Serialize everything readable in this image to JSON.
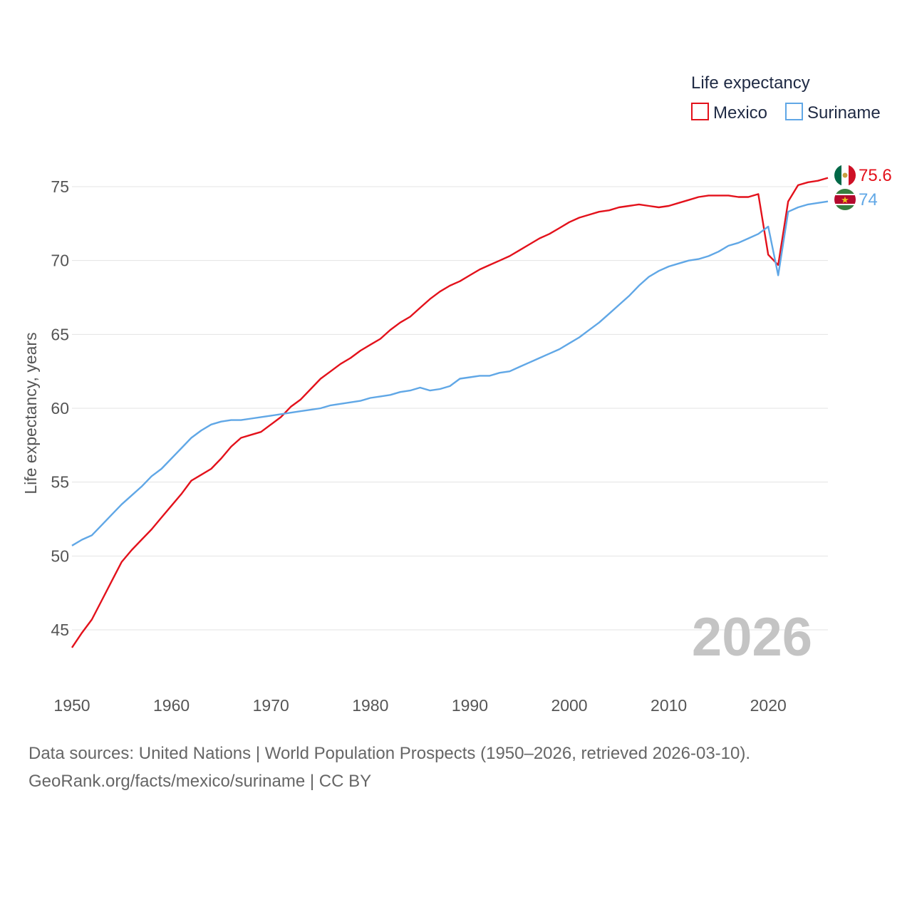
{
  "chart_data": {
    "type": "line",
    "title": "",
    "xlabel": "",
    "ylabel": "Life expectancy, years",
    "xlim": [
      1950,
      2026
    ],
    "ylim": [
      42.5,
      77
    ],
    "x_ticks": [
      1950,
      1960,
      1970,
      1980,
      1990,
      2000,
      2010,
      2020
    ],
    "y_ticks": [
      45,
      50,
      55,
      60,
      65,
      70,
      75
    ],
    "legend": {
      "title": "Life expectancy",
      "position": "top-right"
    },
    "current_year": "2026",
    "series": [
      {
        "name": "Mexico",
        "color": "#e3111b",
        "end_label": "75.6",
        "flag": "mexico-flag-icon",
        "points": [
          [
            1950,
            43.8
          ],
          [
            1951,
            44.8
          ],
          [
            1952,
            45.7
          ],
          [
            1953,
            47.0
          ],
          [
            1954,
            48.3
          ],
          [
            1955,
            49.6
          ],
          [
            1956,
            50.4
          ],
          [
            1957,
            51.1
          ],
          [
            1958,
            51.8
          ],
          [
            1959,
            52.6
          ],
          [
            1960,
            53.4
          ],
          [
            1961,
            54.2
          ],
          [
            1962,
            55.1
          ],
          [
            1963,
            55.5
          ],
          [
            1964,
            55.9
          ],
          [
            1965,
            56.6
          ],
          [
            1966,
            57.4
          ],
          [
            1967,
            58.0
          ],
          [
            1968,
            58.2
          ],
          [
            1969,
            58.4
          ],
          [
            1970,
            58.9
          ],
          [
            1971,
            59.4
          ],
          [
            1972,
            60.1
          ],
          [
            1973,
            60.6
          ],
          [
            1974,
            61.3
          ],
          [
            1975,
            62.0
          ],
          [
            1976,
            62.5
          ],
          [
            1977,
            63.0
          ],
          [
            1978,
            63.4
          ],
          [
            1979,
            63.9
          ],
          [
            1980,
            64.3
          ],
          [
            1981,
            64.7
          ],
          [
            1982,
            65.3
          ],
          [
            1983,
            65.8
          ],
          [
            1984,
            66.2
          ],
          [
            1985,
            66.8
          ],
          [
            1986,
            67.4
          ],
          [
            1987,
            67.9
          ],
          [
            1988,
            68.3
          ],
          [
            1989,
            68.6
          ],
          [
            1990,
            69.0
          ],
          [
            1991,
            69.4
          ],
          [
            1992,
            69.7
          ],
          [
            1993,
            70.0
          ],
          [
            1994,
            70.3
          ],
          [
            1995,
            70.7
          ],
          [
            1996,
            71.1
          ],
          [
            1997,
            71.5
          ],
          [
            1998,
            71.8
          ],
          [
            1999,
            72.2
          ],
          [
            2000,
            72.6
          ],
          [
            2001,
            72.9
          ],
          [
            2002,
            73.1
          ],
          [
            2003,
            73.3
          ],
          [
            2004,
            73.4
          ],
          [
            2005,
            73.6
          ],
          [
            2006,
            73.7
          ],
          [
            2007,
            73.8
          ],
          [
            2008,
            73.7
          ],
          [
            2009,
            73.6
          ],
          [
            2010,
            73.7
          ],
          [
            2011,
            73.9
          ],
          [
            2012,
            74.1
          ],
          [
            2013,
            74.3
          ],
          [
            2014,
            74.4
          ],
          [
            2015,
            74.4
          ],
          [
            2016,
            74.4
          ],
          [
            2017,
            74.3
          ],
          [
            2018,
            74.3
          ],
          [
            2019,
            74.5
          ],
          [
            2020,
            70.4
          ],
          [
            2021,
            69.7
          ],
          [
            2022,
            74.0
          ],
          [
            2023,
            75.1
          ],
          [
            2024,
            75.3
          ],
          [
            2025,
            75.4
          ],
          [
            2026,
            75.6
          ]
        ]
      },
      {
        "name": "Suriname",
        "color": "#60a7e6",
        "end_label": "74",
        "flag": "suriname-flag-icon",
        "points": [
          [
            1950,
            50.7
          ],
          [
            1951,
            51.1
          ],
          [
            1952,
            51.4
          ],
          [
            1953,
            52.1
          ],
          [
            1954,
            52.8
          ],
          [
            1955,
            53.5
          ],
          [
            1956,
            54.1
          ],
          [
            1957,
            54.7
          ],
          [
            1958,
            55.4
          ],
          [
            1959,
            55.9
          ],
          [
            1960,
            56.6
          ],
          [
            1961,
            57.3
          ],
          [
            1962,
            58.0
          ],
          [
            1963,
            58.5
          ],
          [
            1964,
            58.9
          ],
          [
            1965,
            59.1
          ],
          [
            1966,
            59.2
          ],
          [
            1967,
            59.2
          ],
          [
            1968,
            59.3
          ],
          [
            1969,
            59.4
          ],
          [
            1970,
            59.5
          ],
          [
            1971,
            59.6
          ],
          [
            1972,
            59.7
          ],
          [
            1973,
            59.8
          ],
          [
            1974,
            59.9
          ],
          [
            1975,
            60.0
          ],
          [
            1976,
            60.2
          ],
          [
            1977,
            60.3
          ],
          [
            1978,
            60.4
          ],
          [
            1979,
            60.5
          ],
          [
            1980,
            60.7
          ],
          [
            1981,
            60.8
          ],
          [
            1982,
            60.9
          ],
          [
            1983,
            61.1
          ],
          [
            1984,
            61.2
          ],
          [
            1985,
            61.4
          ],
          [
            1986,
            61.2
          ],
          [
            1987,
            61.3
          ],
          [
            1988,
            61.5
          ],
          [
            1989,
            62.0
          ],
          [
            1990,
            62.1
          ],
          [
            1991,
            62.2
          ],
          [
            1992,
            62.2
          ],
          [
            1993,
            62.4
          ],
          [
            1994,
            62.5
          ],
          [
            1995,
            62.8
          ],
          [
            1996,
            63.1
          ],
          [
            1997,
            63.4
          ],
          [
            1998,
            63.7
          ],
          [
            1999,
            64.0
          ],
          [
            2000,
            64.4
          ],
          [
            2001,
            64.8
          ],
          [
            2002,
            65.3
          ],
          [
            2003,
            65.8
          ],
          [
            2004,
            66.4
          ],
          [
            2005,
            67.0
          ],
          [
            2006,
            67.6
          ],
          [
            2007,
            68.3
          ],
          [
            2008,
            68.9
          ],
          [
            2009,
            69.3
          ],
          [
            2010,
            69.6
          ],
          [
            2011,
            69.8
          ],
          [
            2012,
            70.0
          ],
          [
            2013,
            70.1
          ],
          [
            2014,
            70.3
          ],
          [
            2015,
            70.6
          ],
          [
            2016,
            71.0
          ],
          [
            2017,
            71.2
          ],
          [
            2018,
            71.5
          ],
          [
            2019,
            71.8
          ],
          [
            2020,
            72.3
          ],
          [
            2021,
            69.0
          ],
          [
            2022,
            73.3
          ],
          [
            2023,
            73.6
          ],
          [
            2024,
            73.8
          ],
          [
            2025,
            73.9
          ],
          [
            2026,
            74.0
          ]
        ]
      }
    ]
  },
  "footer": {
    "source_line": "Data sources: United Nations | World Population Prospects (1950–2026, retrieved 2026-03-10).",
    "credit_line": "GeoRank.org/facts/mexico/suriname | CC BY"
  }
}
